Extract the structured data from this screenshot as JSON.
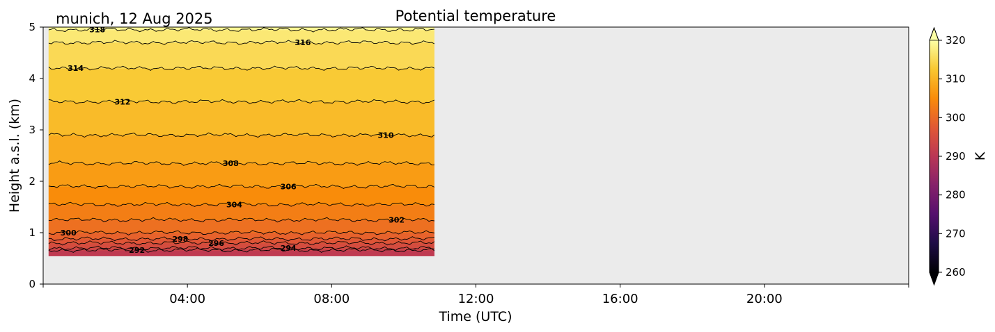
{
  "chart_data": {
    "type": "heatmap",
    "title": "Potential temperature",
    "subtitle": "munich, 12 Aug 2025",
    "xlabel": "Time (UTC)",
    "ylabel": "Height a.s.l. (km)",
    "x_unit": "hours UTC",
    "xlim": [
      0,
      24
    ],
    "ylim": [
      0,
      5
    ],
    "x_ticks": [
      0,
      4,
      8,
      12,
      16,
      20,
      24
    ],
    "x_tick_labels": [
      "04:00",
      "08:00",
      "12:00",
      "16:00",
      "20:00"
    ],
    "y_ticks": [
      0,
      1,
      2,
      3,
      4,
      5
    ],
    "y_tick_labels": [
      "0",
      "1",
      "2",
      "3",
      "4",
      "5"
    ],
    "data_extent": {
      "time_start": 0.15,
      "time_end": 10.85,
      "height_bottom_km": 0.55,
      "height_top_km": 5
    },
    "background_color": "#ebebeb",
    "colormap": "inferno",
    "colorbar": {
      "label": "K",
      "min": 260,
      "max": 320,
      "extend": "both",
      "ticks": [
        260,
        270,
        280,
        290,
        300,
        310,
        320
      ]
    },
    "contour_lines": [
      {
        "value": 292,
        "height_km": 0.66,
        "label_time": 2.6
      },
      {
        "value": 294,
        "height_km": 0.7,
        "label_time": 6.8
      },
      {
        "value": 296,
        "height_km": 0.8,
        "label_time": 4.8
      },
      {
        "value": 298,
        "height_km": 0.88,
        "label_time": 3.8
      },
      {
        "value": 300,
        "height_km": 1.0,
        "label_time": 0.7
      },
      {
        "value": 302,
        "height_km": 1.25,
        "label_time": 9.8
      },
      {
        "value": 304,
        "height_km": 1.55,
        "label_time": 5.3
      },
      {
        "value": 306,
        "height_km": 1.9,
        "label_time": 6.8
      },
      {
        "value": 308,
        "height_km": 2.35,
        "label_time": 5.2
      },
      {
        "value": 310,
        "height_km": 2.9,
        "label_time": 9.5
      },
      {
        "value": 312,
        "height_km": 3.55,
        "label_time": 2.2
      },
      {
        "value": 314,
        "height_km": 4.2,
        "label_time": 0.9
      },
      {
        "value": 316,
        "height_km": 4.7,
        "label_time": 7.2
      },
      {
        "value": 318,
        "height_km": 4.95,
        "label_time": 1.5
      }
    ]
  }
}
